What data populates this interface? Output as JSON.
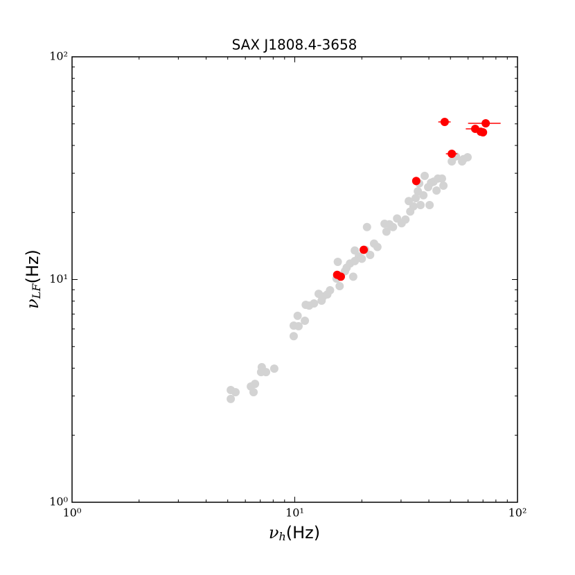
{
  "chart_data": {
    "type": "scatter",
    "title": "SAX J1808.4-3658",
    "x_label": {
      "symbol": "ν",
      "subscript": "h",
      "unit": "(Hz)"
    },
    "y_label": {
      "symbol": "ν",
      "subscript": "LF",
      "unit": "(Hz)"
    },
    "x_scale": "log",
    "y_scale": "log",
    "xlim": [
      1,
      100
    ],
    "ylim": [
      1,
      100
    ],
    "xticks": [
      {
        "value": 1,
        "label": "10⁰"
      },
      {
        "value": 10,
        "label": "10¹"
      },
      {
        "value": 100,
        "label": "10²"
      }
    ],
    "yticks": [
      {
        "value": 1,
        "label": "10⁰"
      },
      {
        "value": 10,
        "label": "10¹"
      },
      {
        "value": 100,
        "label": "10²"
      }
    ],
    "xminor_ticks": [
      2,
      3,
      4,
      5,
      6,
      7,
      8,
      9,
      20,
      30,
      40,
      50,
      60,
      70,
      80,
      90
    ],
    "yminor_ticks": [
      2,
      3,
      4,
      5,
      6,
      7,
      8,
      9,
      20,
      30,
      40,
      50,
      60,
      70,
      80,
      90
    ],
    "series": [
      {
        "color": "#d3d3d3",
        "x": [
          5.16,
          5.16,
          5.42,
          6.35,
          6.53,
          6.63,
          7.06,
          7.11,
          7.43,
          8.09,
          9.89,
          9.89,
          10.3,
          10.4,
          11.1,
          11.2,
          11.6,
          12.2,
          12.8,
          13.2,
          13.4,
          14.0,
          14.4,
          15.4,
          15.9,
          15.6,
          16.1,
          16.8,
          17.1,
          17.7,
          18.3,
          18.6,
          18.6,
          19.4,
          20.0,
          20.7,
          21.1,
          21.8,
          22.7,
          23.5,
          25.3,
          25.8,
          26.6,
          27.6,
          28.8,
          30.2,
          31.4,
          32.5,
          33.0,
          34.1,
          34.9,
          35.7,
          36.2,
          36.7,
          37.8,
          38.3,
          39.7,
          40.3,
          40.9,
          42.0,
          43.3,
          43.9,
          45.8,
          46.5,
          50.7,
          52.9,
          56.4,
          59.7,
          57.2
        ],
        "values": [
          3.19,
          2.91,
          3.12,
          3.31,
          3.12,
          3.4,
          3.84,
          4.04,
          3.84,
          3.98,
          6.21,
          5.57,
          6.87,
          6.17,
          6.53,
          7.7,
          7.64,
          7.81,
          8.63,
          8.04,
          8.39,
          8.57,
          8.95,
          10.1,
          9.34,
          12.0,
          10.4,
          10.9,
          11.3,
          11.8,
          10.3,
          13.5,
          12.1,
          12.7,
          12.4,
          13.6,
          17.2,
          12.9,
          14.5,
          14.0,
          17.8,
          16.4,
          17.7,
          17.2,
          18.8,
          17.9,
          18.6,
          22.5,
          20.2,
          21.3,
          23.2,
          24.9,
          27.0,
          21.6,
          23.9,
          29.2,
          26.0,
          21.6,
          27.2,
          27.5,
          25.1,
          28.4,
          28.4,
          26.4,
          33.9,
          35.7,
          33.9,
          35.4,
          34.7
        ]
      },
      {
        "color": "#ff0000",
        "x": [
          15.5,
          16.1,
          20.4,
          35.1,
          47.1,
          50.7,
          64.6,
          68.4,
          70.0,
          72.0
        ],
        "values": [
          10.5,
          10.3,
          13.6,
          27.7,
          51.0,
          36.7,
          47.5,
          46.1,
          45.8,
          50.3
        ],
        "xerr": [
          0,
          0,
          0,
          0,
          3,
          3,
          6,
          0,
          0,
          12
        ]
      }
    ]
  }
}
